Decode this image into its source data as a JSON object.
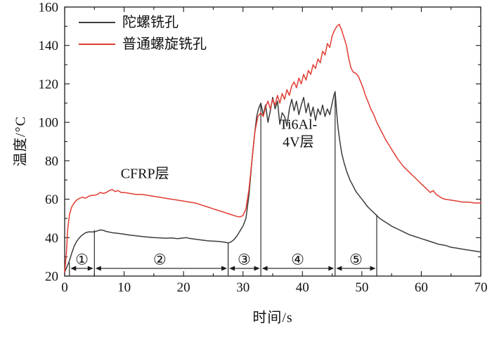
{
  "chart_data": {
    "type": "line",
    "title": "",
    "xlabel": "时间/s",
    "ylabel": "温度/°C",
    "xlim": [
      0,
      70
    ],
    "ylim": [
      20,
      160
    ],
    "xtick": 10,
    "xtick_minor": 5,
    "ytick": 20,
    "ytick_minor": 10,
    "grid": false,
    "legend_position": "top-left-inside",
    "frame_color": "#1a1a1a",
    "arrow_y": 24,
    "label_y": 28.5,
    "series": [
      {
        "name": "陀螺铣孔",
        "color": "#3d3d3d",
        "points": [
          [
            0,
            22
          ],
          [
            0.4,
            25
          ],
          [
            0.8,
            28
          ],
          [
            1.2,
            32
          ],
          [
            1.6,
            35.5
          ],
          [
            2,
            38
          ],
          [
            2.5,
            40
          ],
          [
            3,
            41.5
          ],
          [
            3.5,
            42.5
          ],
          [
            4,
            43
          ],
          [
            4.5,
            43
          ],
          [
            5,
            43
          ],
          [
            5.5,
            43.5
          ],
          [
            6,
            44
          ],
          [
            6.5,
            43.8
          ],
          [
            7,
            43.2
          ],
          [
            8,
            42.6
          ],
          [
            9,
            42.2
          ],
          [
            10,
            41.8
          ],
          [
            11,
            41.3
          ],
          [
            12,
            41
          ],
          [
            13,
            40.6
          ],
          [
            14,
            40.3
          ],
          [
            15,
            40
          ],
          [
            16,
            39.9
          ],
          [
            17,
            39.7
          ],
          [
            18,
            39.8
          ],
          [
            19,
            39.5
          ],
          [
            20,
            39.8
          ],
          [
            20.5,
            40
          ],
          [
            21,
            39.6
          ],
          [
            22,
            39.2
          ],
          [
            23,
            38.8
          ],
          [
            24,
            38.4
          ],
          [
            25,
            38.2
          ],
          [
            26,
            38
          ],
          [
            27,
            37.6
          ],
          [
            27.5,
            37.2
          ],
          [
            28,
            37.8
          ],
          [
            28.5,
            39
          ],
          [
            29,
            41
          ],
          [
            29.5,
            43.5
          ],
          [
            30,
            46
          ],
          [
            30.5,
            50
          ],
          [
            31,
            62
          ],
          [
            31.5,
            80
          ],
          [
            32,
            95
          ],
          [
            32.3,
            103
          ],
          [
            32.6,
            107
          ],
          [
            33,
            110
          ],
          [
            33.4,
            104
          ],
          [
            33.8,
            109
          ],
          [
            34.2,
            100
          ],
          [
            34.6,
            106
          ],
          [
            35,
            113
          ],
          [
            35.4,
            107
          ],
          [
            35.8,
            111
          ],
          [
            36.2,
            99
          ],
          [
            36.6,
            105
          ],
          [
            37,
            103
          ],
          [
            37.4,
            98
          ],
          [
            37.8,
            107
          ],
          [
            38.2,
            112
          ],
          [
            38.6,
            106
          ],
          [
            39,
            111
          ],
          [
            39.4,
            104
          ],
          [
            39.8,
            109
          ],
          [
            40.2,
            113
          ],
          [
            40.6,
            105
          ],
          [
            41,
            110
          ],
          [
            41.4,
            103
          ],
          [
            41.8,
            108
          ],
          [
            42.2,
            101
          ],
          [
            42.6,
            107
          ],
          [
            43,
            104
          ],
          [
            43.4,
            109
          ],
          [
            43.8,
            103
          ],
          [
            44.2,
            107
          ],
          [
            44.6,
            104
          ],
          [
            45,
            110
          ],
          [
            45.3,
            114
          ],
          [
            45.5,
            116
          ],
          [
            45.8,
            104
          ],
          [
            46,
            97
          ],
          [
            46.3,
            90
          ],
          [
            46.6,
            84
          ],
          [
            47,
            79
          ],
          [
            47.5,
            74
          ],
          [
            48,
            70
          ],
          [
            48.5,
            67
          ],
          [
            49,
            64
          ],
          [
            49.5,
            62
          ],
          [
            50,
            60
          ],
          [
            50.5,
            58
          ],
          [
            51,
            56
          ],
          [
            51.5,
            54.5
          ],
          [
            52,
            53
          ],
          [
            52.5,
            51.5
          ],
          [
            53,
            50
          ],
          [
            54,
            48
          ],
          [
            55,
            46
          ],
          [
            56,
            44.5
          ],
          [
            57,
            43
          ],
          [
            58,
            41.5
          ],
          [
            59,
            40.5
          ],
          [
            60,
            39.5
          ],
          [
            61,
            38.5
          ],
          [
            62,
            37.5
          ],
          [
            63,
            36.5
          ],
          [
            64,
            36
          ],
          [
            65,
            35
          ],
          [
            66,
            34.5
          ],
          [
            67,
            34
          ],
          [
            68,
            33.5
          ],
          [
            69,
            33
          ],
          [
            70,
            32.5
          ]
        ]
      },
      {
        "name": "普通螺旋铣孔",
        "color": "#e13b32",
        "points": [
          [
            0,
            22
          ],
          [
            0.3,
            32
          ],
          [
            0.5,
            44
          ],
          [
            0.8,
            52
          ],
          [
            1.2,
            56
          ],
          [
            1.6,
            58
          ],
          [
            2,
            59.5
          ],
          [
            2.5,
            60.5
          ],
          [
            3,
            61
          ],
          [
            3.5,
            60.5
          ],
          [
            4,
            61.5
          ],
          [
            4.5,
            62
          ],
          [
            5,
            62
          ],
          [
            5.5,
            62.5
          ],
          [
            6,
            63.5
          ],
          [
            6.5,
            63
          ],
          [
            7,
            63.5
          ],
          [
            7.5,
            64.5
          ],
          [
            8,
            65
          ],
          [
            8.5,
            64
          ],
          [
            9,
            64.5
          ],
          [
            9.5,
            63.5
          ],
          [
            10,
            63.5
          ],
          [
            11,
            63
          ],
          [
            12,
            62.5
          ],
          [
            13,
            62.5
          ],
          [
            14,
            62
          ],
          [
            15,
            61.5
          ],
          [
            16,
            61
          ],
          [
            17,
            60.5
          ],
          [
            18,
            60
          ],
          [
            19,
            59.5
          ],
          [
            20,
            59
          ],
          [
            21,
            58.5
          ],
          [
            22,
            58
          ],
          [
            23,
            57
          ],
          [
            24,
            56
          ],
          [
            25,
            55
          ],
          [
            26,
            54
          ],
          [
            27,
            53
          ],
          [
            27.5,
            52.5
          ],
          [
            28,
            52
          ],
          [
            28.5,
            51.5
          ],
          [
            29,
            51
          ],
          [
            29.5,
            50.8
          ],
          [
            30,
            51.5
          ],
          [
            30.5,
            55
          ],
          [
            31,
            65
          ],
          [
            31.5,
            80
          ],
          [
            32,
            95
          ],
          [
            32.5,
            103
          ],
          [
            33,
            105
          ],
          [
            33.4,
            103
          ],
          [
            33.8,
            108
          ],
          [
            34.2,
            111
          ],
          [
            34.6,
            107
          ],
          [
            35,
            112
          ],
          [
            35.4,
            109
          ],
          [
            35.8,
            114
          ],
          [
            36.2,
            110
          ],
          [
            36.6,
            115
          ],
          [
            37,
            112
          ],
          [
            37.4,
            117
          ],
          [
            37.8,
            114
          ],
          [
            38.2,
            119
          ],
          [
            38.6,
            121
          ],
          [
            39,
            118
          ],
          [
            39.4,
            123
          ],
          [
            39.8,
            120
          ],
          [
            40.2,
            125
          ],
          [
            40.6,
            122
          ],
          [
            41,
            127
          ],
          [
            41.4,
            125
          ],
          [
            41.8,
            130
          ],
          [
            42.2,
            128
          ],
          [
            42.6,
            133
          ],
          [
            43,
            131
          ],
          [
            43.4,
            137
          ],
          [
            43.8,
            135
          ],
          [
            44.2,
            141
          ],
          [
            44.6,
            139
          ],
          [
            45,
            145
          ],
          [
            45.4,
            148
          ],
          [
            45.8,
            150
          ],
          [
            46.2,
            151
          ],
          [
            46.6,
            148
          ],
          [
            47,
            144
          ],
          [
            47.4,
            140
          ],
          [
            47.8,
            133
          ],
          [
            48.2,
            128
          ],
          [
            48.6,
            126
          ],
          [
            49,
            125.5
          ],
          [
            49.4,
            124
          ],
          [
            49.8,
            121
          ],
          [
            50.2,
            118
          ],
          [
            50.6,
            114
          ],
          [
            51,
            111
          ],
          [
            51.5,
            107
          ],
          [
            52,
            104
          ],
          [
            52.5,
            100
          ],
          [
            53,
            97
          ],
          [
            53.5,
            94
          ],
          [
            54,
            91
          ],
          [
            54.5,
            88.5
          ],
          [
            55,
            86
          ],
          [
            55.5,
            83.5
          ],
          [
            56,
            81
          ],
          [
            56.5,
            79
          ],
          [
            57,
            77
          ],
          [
            57.5,
            75.5
          ],
          [
            58,
            74
          ],
          [
            58.5,
            72.5
          ],
          [
            59,
            71
          ],
          [
            59.5,
            69.5
          ],
          [
            60,
            68
          ],
          [
            60.5,
            66.5
          ],
          [
            61,
            65
          ],
          [
            61.5,
            63.5
          ],
          [
            62,
            64.5
          ],
          [
            62.5,
            62.5
          ],
          [
            63,
            61.5
          ],
          [
            63.5,
            60.5
          ],
          [
            64,
            60
          ],
          [
            65,
            59.5
          ],
          [
            66,
            59
          ],
          [
            67,
            58.5
          ],
          [
            68,
            58.5
          ],
          [
            69,
            58
          ],
          [
            70,
            58
          ]
        ]
      }
    ],
    "annotations": [
      {
        "lines": [
          "CFRP层"
        ],
        "x": 13.5,
        "y": 71
      },
      {
        "lines": [
          "Ti6Al-",
          "4V层"
        ],
        "x": 39.3,
        "y": 96.5
      }
    ],
    "boundaries": [
      {
        "x": 0.8,
        "top": 27
      },
      {
        "x": 5,
        "top": 44
      },
      {
        "x": 27.5,
        "top": 37.5
      },
      {
        "x": 33,
        "top": 110
      },
      {
        "x": 45.5,
        "top": 116
      },
      {
        "x": 52.5,
        "top": 52
      }
    ],
    "regions": [
      {
        "label": "①",
        "from": 0.8,
        "to": 5,
        "cx": 2.9
      },
      {
        "label": "②",
        "from": 5,
        "to": 27.5,
        "cx": 16
      },
      {
        "label": "③",
        "from": 27.5,
        "to": 33,
        "cx": 30.2
      },
      {
        "label": "④",
        "from": 33,
        "to": 45.5,
        "cx": 39.2
      },
      {
        "label": "⑤",
        "from": 45.5,
        "to": 52.5,
        "cx": 49
      }
    ]
  }
}
